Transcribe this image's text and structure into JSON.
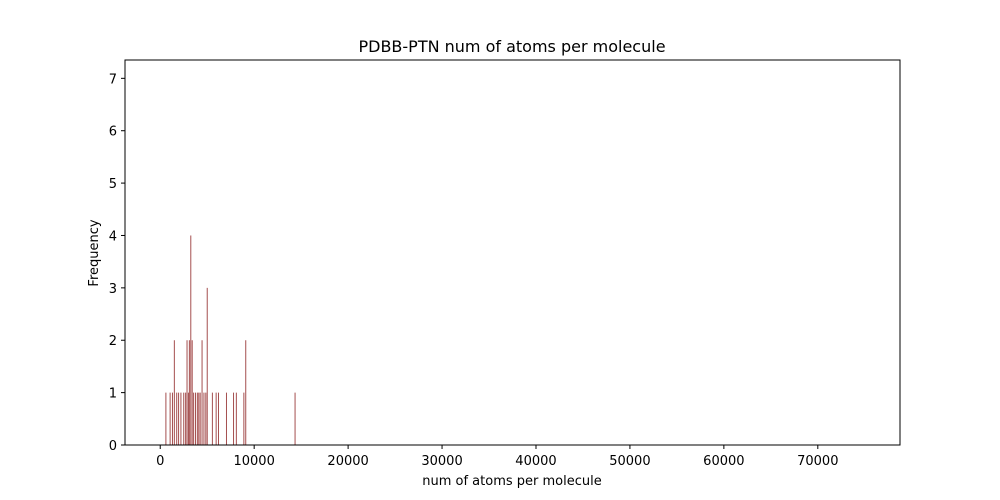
{
  "chart_data": {
    "type": "bar",
    "title": "PDBB-PTN num of atoms per molecule",
    "xlabel": "num of atoms per molecule",
    "ylabel": "Frequency",
    "xlim": [
      -3750,
      78750
    ],
    "ylim": [
      0,
      7.35
    ],
    "xticks": [
      0,
      10000,
      20000,
      30000,
      40000,
      50000,
      60000,
      70000
    ],
    "xtick_labels": [
      "0",
      "10000",
      "20000",
      "30000",
      "40000",
      "50000",
      "60000",
      "70000"
    ],
    "yticks": [
      0,
      1,
      2,
      3,
      4,
      5,
      6,
      7
    ],
    "ytick_labels": [
      "0",
      "1",
      "2",
      "3",
      "4",
      "5",
      "6",
      "7"
    ],
    "bar_color": "#a54f4f",
    "bin_width": 75,
    "grid": false,
    "bars": [
      {
        "x": 550,
        "y": 1
      },
      {
        "x": 1000,
        "y": 1
      },
      {
        "x": 1250,
        "y": 1
      },
      {
        "x": 1450,
        "y": 2
      },
      {
        "x": 1700,
        "y": 1
      },
      {
        "x": 1900,
        "y": 1
      },
      {
        "x": 2150,
        "y": 1
      },
      {
        "x": 2450,
        "y": 1
      },
      {
        "x": 2650,
        "y": 1
      },
      {
        "x": 2800,
        "y": 2
      },
      {
        "x": 2950,
        "y": 1
      },
      {
        "x": 3050,
        "y": 2
      },
      {
        "x": 3200,
        "y": 4
      },
      {
        "x": 3350,
        "y": 2
      },
      {
        "x": 3500,
        "y": 1
      },
      {
        "x": 3700,
        "y": 1
      },
      {
        "x": 3900,
        "y": 1
      },
      {
        "x": 4050,
        "y": 1
      },
      {
        "x": 4200,
        "y": 1
      },
      {
        "x": 4400,
        "y": 2
      },
      {
        "x": 4600,
        "y": 1
      },
      {
        "x": 4800,
        "y": 1
      },
      {
        "x": 4950,
        "y": 3
      },
      {
        "x": 5500,
        "y": 1
      },
      {
        "x": 5900,
        "y": 1
      },
      {
        "x": 6150,
        "y": 1
      },
      {
        "x": 7000,
        "y": 1
      },
      {
        "x": 7750,
        "y": 1
      },
      {
        "x": 8050,
        "y": 1
      },
      {
        "x": 8850,
        "y": 1
      },
      {
        "x": 9050,
        "y": 2
      },
      {
        "x": 14300,
        "y": 1
      }
    ]
  }
}
